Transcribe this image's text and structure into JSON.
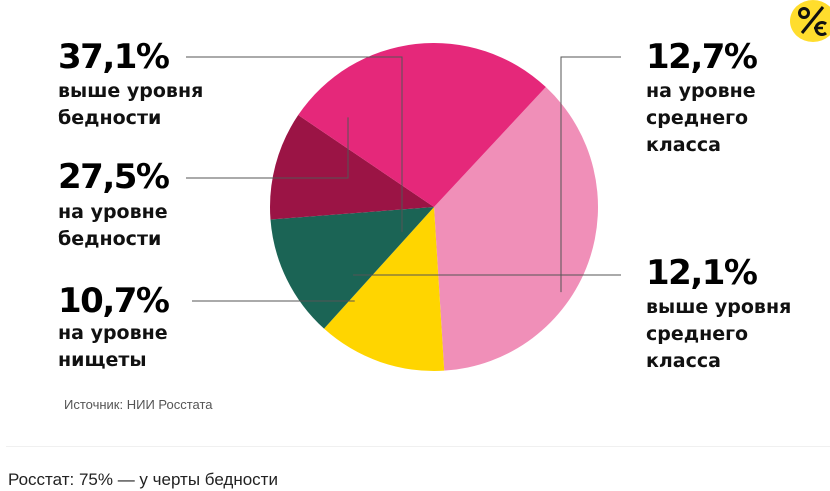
{
  "chart_data": {
    "type": "pie",
    "slices": [
      {
        "label": "выше уровня бедности",
        "value": 37.1,
        "value_label": "37,1%",
        "color": "#f08fb8"
      },
      {
        "label": "на уровне среднего класса",
        "value": 12.7,
        "value_label": "12,7%",
        "color": "#ffd500"
      },
      {
        "label": "выше уровня среднего класса",
        "value": 12.1,
        "value_label": "12,1%",
        "color": "#1b6455"
      },
      {
        "label": "на уровне нищеты",
        "value": 10.7,
        "value_label": "10,7%",
        "color": "#9b1445"
      },
      {
        "label": "на уровне бедности",
        "value": 27.5,
        "value_label": "27,5%",
        "color": "#e5287a"
      }
    ],
    "labels": {
      "above_poverty": {
        "pct": "37,1%",
        "text": "выше уровня\nбедности"
      },
      "poverty": {
        "pct": "27,5%",
        "text": "на уровне\nбедности"
      },
      "destitution": {
        "pct": "10,7%",
        "text": "на уровне\nнищеты"
      },
      "middle": {
        "pct": "12,7%",
        "text": "на уровне\nсреднего\nкласса"
      },
      "above_middle": {
        "pct": "12,1%",
        "text": "выше уровня\nсреднего\nкласса"
      }
    }
  },
  "source": "Источник: НИИ Росстата",
  "caption": "Росстат: 75% — у черты бедности",
  "logo": "percent-euro-logo"
}
